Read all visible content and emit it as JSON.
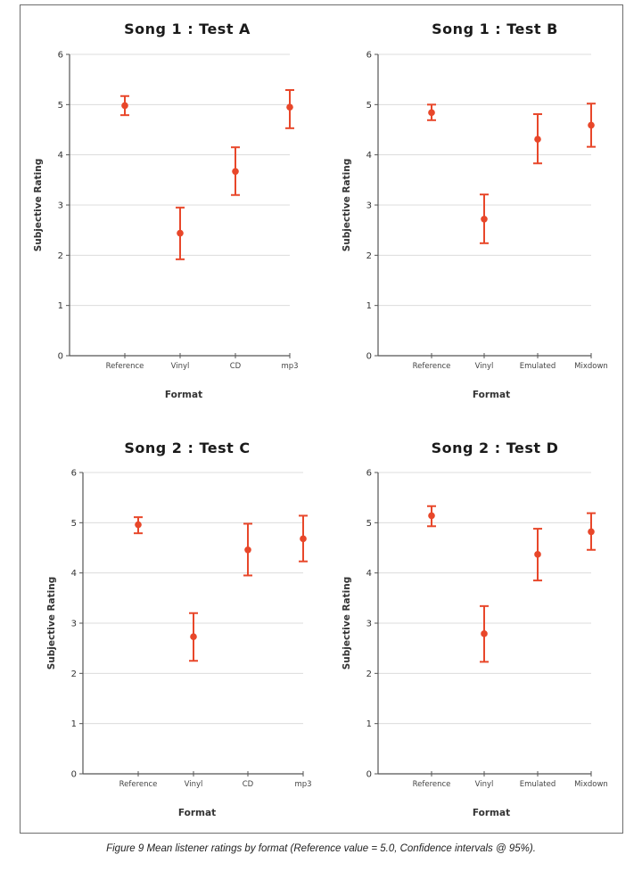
{
  "caption": "Figure 9 Mean listener ratings by format (Reference value = 5.0, Confidence intervals @ 95%).",
  "accent_color": "#E8472A",
  "chart_data": [
    {
      "type": "scatter",
      "subtype": "mean-with-error-bars",
      "title": "Song 1 : Test A",
      "xlabel": "Format",
      "ylabel": "Subjective Rating",
      "ylim": [
        0,
        6
      ],
      "yticks": [
        "0",
        "1",
        "2",
        "3",
        "4",
        "5",
        "6"
      ],
      "grid": true,
      "categories": [
        "Reference",
        "Vinyl",
        "CD",
        "mp3"
      ],
      "series": [
        {
          "name": "Mean rating",
          "values": [
            4.98,
            2.44,
            3.67,
            4.95
          ],
          "ci_low": [
            4.79,
            1.92,
            3.2,
            4.53
          ],
          "ci_high": [
            5.17,
            2.95,
            4.15,
            5.29
          ]
        }
      ]
    },
    {
      "type": "scatter",
      "subtype": "mean-with-error-bars",
      "title": "Song 1 : Test B",
      "xlabel": "Format",
      "ylabel": "Subjective Rating",
      "ylim": [
        0,
        6
      ],
      "yticks": [
        "0",
        "1",
        "2",
        "3",
        "4",
        "5",
        "6"
      ],
      "grid": true,
      "categories": [
        "Reference",
        "Vinyl",
        "Emulated",
        "Mixdown"
      ],
      "series": [
        {
          "name": "Mean rating",
          "values": [
            4.84,
            2.72,
            4.31,
            4.59
          ],
          "ci_low": [
            4.69,
            2.24,
            3.83,
            4.16
          ],
          "ci_high": [
            5.0,
            3.21,
            4.81,
            5.02
          ]
        }
      ]
    },
    {
      "type": "scatter",
      "subtype": "mean-with-error-bars",
      "title": "Song 2 : Test C",
      "xlabel": "Format",
      "ylabel": "Subjective Rating",
      "ylim": [
        0,
        6
      ],
      "yticks": [
        "0",
        "1",
        "2",
        "3",
        "4",
        "5",
        "6"
      ],
      "grid": true,
      "categories": [
        "Reference",
        "Vinyl",
        "CD",
        "mp3"
      ],
      "series": [
        {
          "name": "Mean rating",
          "values": [
            4.96,
            2.73,
            4.46,
            4.68
          ],
          "ci_low": [
            4.79,
            2.25,
            3.95,
            4.23
          ],
          "ci_high": [
            5.11,
            3.2,
            4.98,
            5.14
          ]
        }
      ]
    },
    {
      "type": "scatter",
      "subtype": "mean-with-error-bars",
      "title": "Song 2 : Test D",
      "xlabel": "Format",
      "ylabel": "Subjective Rating",
      "ylim": [
        0,
        6
      ],
      "yticks": [
        "0",
        "1",
        "2",
        "3",
        "4",
        "5",
        "6"
      ],
      "grid": true,
      "categories": [
        "Reference",
        "Vinyl",
        "Emulated",
        "Mixdown"
      ],
      "series": [
        {
          "name": "Mean rating",
          "values": [
            5.14,
            2.79,
            4.37,
            4.82
          ],
          "ci_low": [
            4.93,
            2.23,
            3.85,
            4.46
          ],
          "ci_high": [
            5.33,
            3.34,
            4.88,
            5.19
          ]
        }
      ]
    }
  ]
}
